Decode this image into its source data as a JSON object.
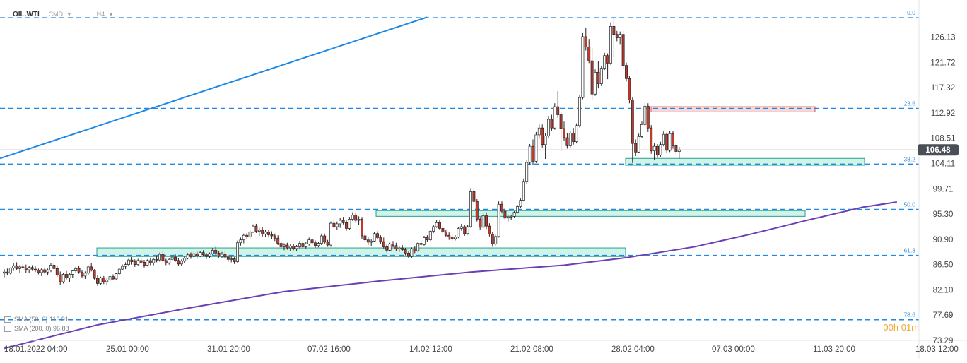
{
  "header": {
    "symbol": "OIL.WTI",
    "source": "CMD",
    "timeframe": "H4"
  },
  "timer": "00h 01m",
  "legend": [
    {
      "label": "SMA (50, 0) 113.91",
      "color": "#2962ff"
    },
    {
      "label": "SMA (200, 0) 96.88",
      "color": "#6a3fb5"
    }
  ],
  "colors": {
    "bull_candle": "#ffffff",
    "bear_candle": "#c0392b",
    "wick": "#222222",
    "fib_line": "#1e88e5",
    "trend_line": "#1e88e5",
    "sma200": "#6a3fb5",
    "support_zone": "#bff0e0",
    "resistance_zone": "#f7c9c9",
    "price_tag_bg": "#4a4f57"
  },
  "chart_data": {
    "type": "candlestick",
    "title": "",
    "instrument": "OIL.WTI",
    "timeframe": "H4",
    "ylim": [
      73.29,
      130.5
    ],
    "y_ticks": [
      "126.13",
      "121.72",
      "117.32",
      "112.92",
      "108.51",
      "104.11",
      "99.71",
      "95.30",
      "90.90",
      "86.50",
      "82.10",
      "77.69",
      "73.29"
    ],
    "x_ticks": [
      "18.01.2022  04:00",
      "25.01  00:00",
      "31.01  20:00",
      "07.02  16:00",
      "14.02  12:00",
      "21.02  08:00",
      "28.02  04:00",
      "07.03  00:00",
      "11.03  20:00",
      "18.03  12:00"
    ],
    "last_price": 106.48,
    "fibonacci_levels": [
      {
        "label": "0.0",
        "value": 129.5
      },
      {
        "label": "23.6",
        "value": 113.7
      },
      {
        "label": "38.2",
        "value": 104.0
      },
      {
        "label": "50.0",
        "value": 96.1
      },
      {
        "label": "61.8",
        "value": 88.1
      },
      {
        "label": "78.6",
        "value": 76.9
      }
    ],
    "zones": [
      {
        "type": "support",
        "from": 87.9,
        "to": 89.4,
        "start": "20.01",
        "end": "28.02"
      },
      {
        "type": "support",
        "from": 94.9,
        "to": 95.9,
        "start": "11.02",
        "end": "10.03"
      },
      {
        "type": "support",
        "from": 103.8,
        "to": 105.0,
        "start": "28.02",
        "end": "13.03"
      },
      {
        "type": "resistance",
        "from": 113.1,
        "to": 114.0,
        "start": "01.03",
        "end": "11.03"
      }
    ],
    "trend_line": {
      "from": [
        0,
        105.0
      ],
      "to": [
        136,
        129.6
      ]
    },
    "series": [
      {
        "name": "SMA (200, 0) 96.88",
        "values": [
          [
            0,
            71.9
          ],
          [
            30,
            76.0
          ],
          [
            60,
            79.0
          ],
          [
            90,
            81.8
          ],
          [
            120,
            83.6
          ],
          [
            150,
            85.2
          ],
          [
            180,
            86.4
          ],
          [
            200,
            87.7
          ],
          [
            222,
            89.6
          ],
          [
            240,
            91.8
          ],
          [
            258,
            94.2
          ],
          [
            276,
            96.5
          ],
          [
            287,
            97.4
          ]
        ]
      }
    ],
    "candles": [
      [
        85.0,
        85.7,
        84.3,
        85.2
      ],
      [
        85.2,
        85.8,
        84.6,
        85.0
      ],
      [
        85.0,
        86.0,
        84.8,
        85.9
      ],
      [
        85.9,
        86.8,
        85.4,
        86.3
      ],
      [
        86.3,
        86.9,
        85.5,
        85.8
      ],
      [
        85.8,
        86.4,
        85.0,
        86.1
      ],
      [
        86.1,
        86.6,
        85.7,
        85.9
      ],
      [
        85.9,
        86.5,
        85.1,
        85.6
      ],
      [
        85.6,
        86.3,
        85.0,
        86.0
      ],
      [
        86.0,
        86.4,
        85.4,
        85.7
      ],
      [
        85.7,
        86.2,
        85.2,
        85.5
      ],
      [
        85.5,
        85.8,
        84.8,
        85.1
      ],
      [
        85.1,
        85.9,
        84.5,
        85.6
      ],
      [
        85.6,
        86.0,
        84.9,
        85.2
      ],
      [
        85.2,
        85.8,
        84.6,
        85.5
      ],
      [
        85.5,
        86.7,
        85.2,
        86.4
      ],
      [
        86.4,
        86.9,
        85.6,
        85.8
      ],
      [
        85.8,
        86.2,
        84.4,
        84.7
      ],
      [
        84.7,
        85.3,
        83.0,
        83.5
      ],
      [
        83.5,
        85.0,
        83.2,
        84.8
      ],
      [
        84.8,
        85.4,
        83.9,
        84.2
      ],
      [
        84.2,
        85.0,
        83.4,
        84.8
      ],
      [
        84.8,
        85.6,
        84.2,
        85.4
      ],
      [
        85.4,
        86.1,
        85.0,
        85.8
      ],
      [
        85.8,
        86.3,
        84.9,
        85.2
      ],
      [
        85.2,
        85.6,
        84.2,
        84.5
      ],
      [
        84.5,
        85.3,
        84.0,
        85.0
      ],
      [
        85.0,
        86.3,
        84.7,
        86.1
      ],
      [
        86.1,
        86.7,
        85.3,
        85.5
      ],
      [
        85.5,
        85.7,
        83.9,
        84.1
      ],
      [
        84.1,
        84.6,
        82.8,
        83.2
      ],
      [
        83.2,
        84.4,
        82.9,
        84.2
      ],
      [
        84.2,
        84.5,
        83.1,
        83.5
      ],
      [
        83.5,
        84.1,
        82.9,
        83.8
      ],
      [
        83.8,
        84.6,
        83.6,
        84.4
      ],
      [
        84.4,
        84.8,
        83.8,
        84.0
      ],
      [
        84.0,
        85.0,
        83.9,
        84.9
      ],
      [
        84.9,
        85.9,
        84.7,
        85.7
      ],
      [
        85.7,
        86.5,
        85.5,
        86.2
      ],
      [
        86.2,
        86.9,
        85.7,
        86.5
      ],
      [
        86.5,
        87.5,
        86.2,
        87.3
      ],
      [
        87.3,
        87.8,
        86.5,
        87.0
      ],
      [
        87.0,
        87.4,
        86.1,
        86.5
      ],
      [
        86.5,
        87.5,
        86.3,
        87.2
      ],
      [
        87.2,
        87.6,
        86.6,
        86.9
      ],
      [
        86.9,
        87.3,
        86.0,
        86.4
      ],
      [
        86.4,
        87.4,
        86.2,
        87.2
      ],
      [
        87.2,
        87.7,
        86.4,
        86.8
      ],
      [
        86.8,
        87.6,
        86.4,
        87.4
      ],
      [
        87.4,
        88.0,
        86.9,
        87.3
      ],
      [
        87.3,
        88.6,
        87.0,
        88.3
      ],
      [
        88.3,
        88.8,
        86.9,
        87.2
      ],
      [
        87.2,
        87.5,
        86.4,
        86.8
      ],
      [
        86.8,
        87.6,
        86.5,
        87.4
      ],
      [
        87.4,
        88.1,
        87.2,
        87.8
      ],
      [
        87.8,
        88.3,
        87.0,
        87.2
      ],
      [
        87.2,
        87.6,
        86.2,
        86.6
      ],
      [
        86.6,
        87.4,
        86.3,
        87.1
      ],
      [
        87.1,
        87.9,
        86.8,
        87.6
      ],
      [
        87.6,
        88.5,
        87.4,
        88.2
      ],
      [
        88.2,
        88.6,
        87.5,
        87.9
      ],
      [
        87.9,
        88.7,
        87.7,
        88.4
      ],
      [
        88.4,
        88.8,
        87.7,
        88.0
      ],
      [
        88.0,
        88.9,
        87.8,
        88.6
      ],
      [
        88.6,
        89.0,
        87.9,
        88.2
      ],
      [
        88.2,
        88.5,
        87.5,
        87.9
      ],
      [
        87.9,
        88.6,
        87.6,
        88.4
      ],
      [
        88.4,
        89.4,
        88.2,
        89.0
      ],
      [
        89.0,
        89.6,
        88.2,
        88.5
      ],
      [
        88.5,
        88.8,
        87.7,
        88.0
      ],
      [
        88.0,
        88.7,
        87.6,
        88.3
      ],
      [
        88.3,
        88.8,
        87.5,
        87.8
      ],
      [
        87.8,
        88.2,
        87.0,
        87.4
      ],
      [
        87.4,
        87.9,
        86.9,
        87.5
      ],
      [
        87.5,
        87.8,
        86.6,
        87.0
      ],
      [
        87.0,
        90.7,
        86.8,
        90.3
      ],
      [
        90.3,
        91.2,
        89.8,
        90.8
      ],
      [
        90.8,
        91.9,
        90.2,
        91.6
      ],
      [
        91.6,
        92.0,
        90.9,
        91.3
      ],
      [
        91.3,
        92.5,
        91.0,
        92.2
      ],
      [
        92.2,
        93.5,
        92.0,
        93.2
      ],
      [
        93.2,
        93.6,
        92.0,
        92.3
      ],
      [
        92.3,
        92.9,
        91.5,
        92.5
      ],
      [
        92.5,
        93.0,
        91.4,
        91.8
      ],
      [
        91.8,
        92.5,
        91.3,
        92.2
      ],
      [
        92.2,
        92.6,
        91.4,
        91.7
      ],
      [
        91.7,
        92.3,
        91.0,
        91.5
      ],
      [
        91.5,
        91.9,
        90.6,
        91.1
      ],
      [
        91.1,
        91.6,
        89.9,
        90.2
      ],
      [
        90.2,
        90.6,
        89.2,
        89.6
      ],
      [
        89.6,
        90.2,
        89.0,
        89.9
      ],
      [
        89.9,
        90.3,
        89.1,
        89.4
      ],
      [
        89.4,
        90.0,
        88.9,
        89.7
      ],
      [
        89.7,
        90.1,
        89.0,
        89.3
      ],
      [
        89.3,
        89.9,
        88.8,
        89.6
      ],
      [
        89.6,
        90.6,
        89.3,
        90.2
      ],
      [
        90.2,
        90.6,
        89.2,
        89.6
      ],
      [
        89.6,
        90.4,
        89.3,
        90.1
      ],
      [
        90.1,
        91.2,
        89.8,
        90.8
      ],
      [
        90.8,
        91.1,
        89.9,
        90.3
      ],
      [
        90.3,
        90.7,
        89.4,
        89.8
      ],
      [
        89.8,
        90.5,
        89.5,
        90.2
      ],
      [
        90.2,
        91.9,
        89.9,
        91.5
      ],
      [
        91.5,
        91.9,
        90.1,
        90.4
      ],
      [
        90.4,
        90.8,
        89.6,
        89.9
      ],
      [
        89.9,
        94.0,
        89.6,
        93.7
      ],
      [
        93.7,
        94.4,
        92.8,
        93.1
      ],
      [
        93.1,
        94.0,
        92.6,
        93.6
      ],
      [
        93.6,
        94.7,
        92.9,
        94.2
      ],
      [
        94.2,
        94.8,
        93.5,
        93.8
      ],
      [
        93.8,
        94.3,
        92.4,
        92.8
      ],
      [
        92.8,
        94.8,
        92.5,
        94.4
      ],
      [
        94.4,
        95.6,
        94.1,
        95.1
      ],
      [
        95.1,
        95.6,
        93.8,
        94.2
      ],
      [
        94.2,
        94.9,
        93.4,
        94.4
      ],
      [
        94.4,
        94.8,
        91.0,
        91.5
      ],
      [
        91.5,
        92.0,
        90.4,
        90.8
      ],
      [
        90.8,
        91.3,
        89.9,
        90.4
      ],
      [
        90.4,
        90.9,
        89.7,
        90.6
      ],
      [
        90.6,
        92.2,
        90.4,
        91.9
      ],
      [
        91.9,
        92.3,
        90.9,
        91.2
      ],
      [
        91.2,
        91.6,
        90.1,
        90.5
      ],
      [
        90.5,
        91.2,
        89.3,
        89.6
      ],
      [
        89.6,
        90.0,
        88.6,
        89.0
      ],
      [
        89.0,
        90.3,
        88.8,
        90.1
      ],
      [
        90.1,
        90.6,
        89.5,
        89.8
      ],
      [
        89.8,
        90.3,
        88.9,
        89.2
      ],
      [
        89.2,
        89.7,
        88.7,
        89.4
      ],
      [
        89.4,
        89.9,
        88.8,
        89.1
      ],
      [
        89.1,
        89.4,
        88.1,
        88.5
      ],
      [
        88.5,
        88.9,
        87.6,
        87.9
      ],
      [
        87.9,
        89.5,
        87.7,
        89.2
      ],
      [
        89.2,
        89.7,
        88.5,
        88.9
      ],
      [
        88.9,
        90.4,
        88.7,
        90.2
      ],
      [
        90.2,
        90.7,
        89.6,
        90.0
      ],
      [
        90.0,
        91.5,
        89.8,
        91.2
      ],
      [
        91.2,
        91.6,
        90.5,
        90.8
      ],
      [
        90.8,
        92.6,
        90.6,
        92.3
      ],
      [
        92.3,
        93.4,
        92.0,
        93.1
      ],
      [
        93.1,
        94.3,
        92.9,
        93.8
      ],
      [
        93.8,
        94.2,
        92.5,
        92.8
      ],
      [
        92.8,
        93.2,
        91.8,
        92.2
      ],
      [
        92.2,
        92.6,
        91.3,
        91.6
      ],
      [
        91.6,
        92.1,
        90.8,
        91.3
      ],
      [
        91.3,
        91.8,
        90.6,
        91.0
      ],
      [
        91.0,
        91.6,
        90.7,
        91.3
      ],
      [
        91.3,
        93.1,
        91.1,
        92.8
      ],
      [
        92.8,
        93.6,
        92.4,
        93.1
      ],
      [
        93.1,
        93.4,
        91.5,
        91.9
      ],
      [
        91.9,
        93.4,
        91.7,
        93.1
      ],
      [
        93.1,
        99.8,
        92.9,
        99.2
      ],
      [
        99.2,
        99.9,
        97.0,
        97.5
      ],
      [
        97.5,
        97.9,
        94.0,
        94.4
      ],
      [
        94.4,
        94.8,
        92.6,
        93.0
      ],
      [
        93.0,
        95.4,
        92.8,
        95.0
      ],
      [
        95.0,
        95.6,
        92.7,
        93.2
      ],
      [
        93.2,
        93.7,
        91.4,
        91.8
      ],
      [
        91.8,
        92.2,
        89.6,
        90.1
      ],
      [
        90.1,
        91.7,
        89.8,
        91.4
      ],
      [
        91.4,
        97.5,
        91.2,
        97.0
      ],
      [
        97.0,
        97.5,
        95.4,
        95.8
      ],
      [
        95.8,
        96.3,
        94.2,
        94.6
      ],
      [
        94.6,
        95.2,
        94.0,
        94.8
      ],
      [
        94.8,
        95.2,
        94.3,
        94.9
      ],
      [
        94.9,
        95.8,
        94.7,
        95.6
      ],
      [
        95.6,
        96.9,
        95.4,
        96.6
      ],
      [
        96.6,
        98.0,
        96.4,
        97.7
      ],
      [
        97.7,
        101.5,
        97.5,
        101.0
      ],
      [
        101.0,
        104.8,
        100.6,
        104.3
      ],
      [
        104.3,
        107.5,
        104.0,
        107.1
      ],
      [
        107.1,
        108.3,
        103.9,
        104.5
      ],
      [
        104.5,
        109.6,
        104.2,
        109.1
      ],
      [
        109.1,
        110.9,
        108.4,
        110.3
      ],
      [
        110.3,
        110.9,
        106.9,
        107.4
      ],
      [
        107.4,
        109.4,
        104.9,
        108.9
      ],
      [
        108.9,
        112.4,
        108.5,
        111.8
      ],
      [
        111.8,
        112.6,
        109.8,
        110.3
      ],
      [
        110.3,
        114.6,
        110.0,
        114.0
      ],
      [
        114.0,
        116.7,
        112.1,
        112.6
      ],
      [
        112.6,
        113.0,
        106.3,
        110.2
      ],
      [
        110.2,
        111.4,
        108.1,
        108.6
      ],
      [
        108.6,
        109.4,
        106.7,
        107.2
      ],
      [
        107.2,
        109.8,
        106.9,
        109.4
      ],
      [
        109.4,
        110.3,
        107.4,
        107.9
      ],
      [
        107.9,
        111.1,
        107.6,
        110.7
      ],
      [
        110.7,
        116.1,
        110.4,
        115.6
      ],
      [
        115.6,
        126.8,
        115.3,
        126.2
      ],
      [
        126.2,
        127.8,
        123.8,
        124.4
      ],
      [
        124.4,
        125.8,
        121.6,
        122.0
      ],
      [
        122.0,
        124.2,
        115.2,
        116.2
      ],
      [
        116.2,
        120.5,
        115.9,
        120.0
      ],
      [
        120.0,
        121.9,
        117.2,
        118.0
      ],
      [
        118.0,
        121.1,
        117.6,
        120.7
      ],
      [
        120.7,
        123.4,
        120.4,
        122.9
      ],
      [
        122.9,
        123.3,
        118.8,
        121.6
      ],
      [
        121.6,
        128.7,
        121.3,
        128.0
      ],
      [
        128.0,
        129.4,
        122.6,
        126.6
      ],
      [
        126.6,
        127.2,
        125.4,
        126.0
      ],
      [
        126.0,
        127.1,
        124.8,
        126.6
      ],
      [
        126.6,
        127.2,
        120.6,
        121.2
      ],
      [
        121.2,
        121.7,
        118.4,
        118.9
      ],
      [
        118.9,
        119.4,
        114.6,
        115.2
      ],
      [
        115.2,
        115.6,
        104.2,
        107.6
      ],
      [
        107.6,
        108.3,
        105.4,
        106.1
      ],
      [
        106.1,
        109.3,
        105.9,
        108.8
      ],
      [
        108.8,
        111.4,
        108.5,
        110.9
      ],
      [
        110.9,
        114.6,
        110.6,
        114.1
      ],
      [
        114.1,
        114.6,
        109.6,
        110.3
      ],
      [
        110.3,
        110.8,
        105.8,
        106.3
      ],
      [
        106.3,
        107.6,
        104.7,
        107.1
      ],
      [
        107.1,
        107.5,
        105.1,
        105.6
      ],
      [
        105.6,
        107.9,
        105.3,
        107.4
      ],
      [
        107.4,
        109.7,
        107.1,
        109.2
      ],
      [
        109.2,
        109.5,
        105.9,
        106.4
      ],
      [
        106.4,
        109.8,
        106.1,
        109.3
      ],
      [
        109.3,
        109.7,
        106.7,
        107.2
      ],
      [
        107.2,
        107.6,
        105.7,
        106.2
      ],
      [
        106.2,
        107.0,
        105.0,
        106.48
      ]
    ]
  }
}
